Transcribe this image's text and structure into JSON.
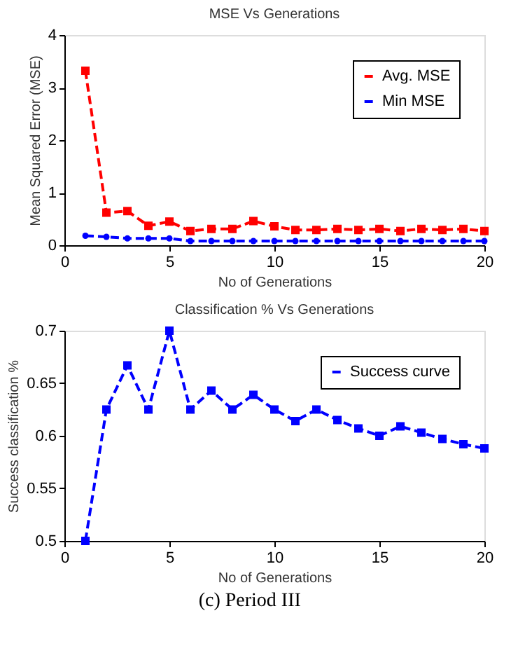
{
  "chart_data": [
    {
      "type": "line",
      "title": "MSE Vs Generations",
      "xlabel": "No of Generations",
      "ylabel": "Mean Squared Error (MSE)",
      "x": [
        1,
        2,
        3,
        4,
        5,
        6,
        7,
        8,
        9,
        10,
        11,
        12,
        13,
        14,
        15,
        16,
        17,
        18,
        19,
        20
      ],
      "xlim": [
        0,
        20
      ],
      "xticks": [
        0,
        5,
        10,
        15,
        20
      ],
      "ylim": [
        0,
        4
      ],
      "yticks": [
        0,
        1,
        2,
        3,
        4
      ],
      "grid": false,
      "legend": "top right",
      "series": [
        {
          "name": "Avg. MSE",
          "color": "#ff0000",
          "marker": "square",
          "line_style": "dashed",
          "values": [
            3.32,
            0.62,
            0.65,
            0.37,
            0.45,
            0.27,
            0.31,
            0.31,
            0.46,
            0.36,
            0.29,
            0.29,
            0.31,
            0.29,
            0.31,
            0.27,
            0.31,
            0.29,
            0.31,
            0.27
          ]
        },
        {
          "name": "Min MSE",
          "color": "#0000ff",
          "marker": "circle",
          "line_style": "dashed",
          "values": [
            0.18,
            0.16,
            0.13,
            0.13,
            0.13,
            0.08,
            0.08,
            0.08,
            0.08,
            0.08,
            0.08,
            0.08,
            0.08,
            0.08,
            0.08,
            0.08,
            0.08,
            0.08,
            0.08,
            0.08
          ]
        }
      ]
    },
    {
      "type": "line",
      "title": "Classification % Vs Generations",
      "xlabel": "No of Generations",
      "ylabel": "Success classification %",
      "x": [
        1,
        2,
        3,
        4,
        5,
        6,
        7,
        8,
        9,
        10,
        11,
        12,
        13,
        14,
        15,
        16,
        17,
        18,
        19,
        20
      ],
      "xlim": [
        0,
        20
      ],
      "xticks": [
        0,
        5,
        10,
        15,
        20
      ],
      "ylim": [
        0.5,
        0.7
      ],
      "yticks": [
        0.5,
        0.55,
        0.6,
        0.65,
        0.7
      ],
      "grid": false,
      "legend": "top right",
      "annotations": [
        "(c) Period III"
      ],
      "series": [
        {
          "name": "Success curve",
          "color": "#0000ff",
          "marker": "square",
          "line_style": "dashed",
          "values": [
            0.5,
            0.625,
            0.667,
            0.625,
            0.7,
            0.625,
            0.643,
            0.625,
            0.639,
            0.625,
            0.614,
            0.625,
            0.615,
            0.607,
            0.6,
            0.609,
            0.603,
            0.597,
            0.592,
            0.588
          ]
        }
      ]
    }
  ]
}
